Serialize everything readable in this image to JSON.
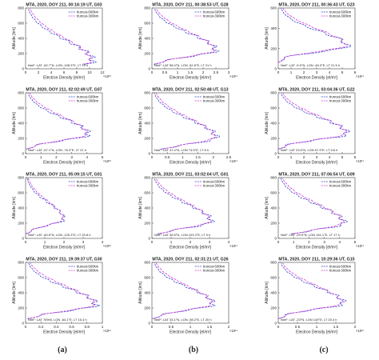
{
  "figure": {
    "column_labels": [
      "(a)",
      "(b)",
      "(c)"
    ],
    "series_names": [
      "truncat-600km",
      "truncat-300km"
    ],
    "colors": {
      "series_600": "#3344cc",
      "series_300": "#d63ad6",
      "axis": "#444444",
      "text": "#222222"
    },
    "ylabel": "Altitude [km]",
    "xlabel": "Electron Density [el/m³]"
  },
  "chart_data": [
    {
      "type": "line",
      "title": "MTA, 2020, DOY 211, 00:16:19 UT, G03",
      "xlabel": "Electron Density [el/m³]",
      "ylabel": "Altitude [km]",
      "xlim": [
        0,
        12
      ],
      "ylim": [
        0,
        800
      ],
      "xticks": [
        "0",
        "2",
        "4",
        "6",
        "8",
        "10",
        "12"
      ],
      "yticks": [
        "0",
        "200",
        "400",
        "600",
        "800"
      ],
      "exponent": "×10¹⁰",
      "annotation": "NmF: LAT -82.7°N, LON -108.3°E, LT 19 h",
      "peak": {
        "x": 10.5,
        "y": 100
      },
      "legend": "right",
      "series": [
        {
          "name": "truncat-600km"
        },
        {
          "name": "truncat-300km"
        }
      ]
    },
    {
      "type": "line",
      "title": "MTA, 2020, DOY 211, 00:38:53 UT, G28",
      "xlabel": "Electron Density [el/m³]",
      "ylabel": "Altitude [km]",
      "xlim": [
        0,
        3
      ],
      "ylim": [
        0,
        800
      ],
      "xticks": [
        "0",
        "0.5",
        "1",
        "1.5",
        "2",
        "2.5",
        "3"
      ],
      "yticks": [
        "0",
        "200",
        "400",
        "600",
        "800"
      ],
      "exponent": "×10¹¹",
      "annotation": "NmF: LAT 58.4°N, LON -52.6°E, LT 21 h",
      "peak": {
        "x": 2.5,
        "y": 240
      },
      "legend": "right",
      "series": [
        {
          "name": "truncat-600km"
        },
        {
          "name": "truncat-300km"
        }
      ]
    },
    {
      "type": "line",
      "title": "MTA, 2020, DOY 211, 00:36:43 UT, G23",
      "xlabel": "Electron Density [el/m³]",
      "ylabel": "Altitude [km]",
      "xlim": [
        0,
        6
      ],
      "ylim": [
        0,
        600
      ],
      "xticks": [
        "0",
        "1",
        "2",
        "3",
        "4",
        "5",
        "6"
      ],
      "yticks": [
        "0",
        "200",
        "400",
        "600"
      ],
      "exponent": "×10¹¹",
      "annotation": "NmF: LAT -9.5°N, LON -46.3°E, LT 21.5 h",
      "peak": {
        "x": 5.4,
        "y": 220
      },
      "legend": "right",
      "series": [
        {
          "name": "truncat-600km"
        },
        {
          "name": "truncat-300km"
        }
      ]
    },
    {
      "type": "line",
      "title": "MTA, 2020, DOY 211, 02:02:49 UT, G07",
      "xlabel": "Electron Density [el/m³]",
      "ylabel": "Altitude [km]",
      "xlim": [
        0,
        5
      ],
      "ylim": [
        0,
        800
      ],
      "xticks": [
        "0",
        "1",
        "2",
        "3",
        "4",
        "5"
      ],
      "yticks": [
        "0",
        "200",
        "400",
        "600",
        "800"
      ],
      "exponent": "×10¹⁰",
      "annotation": "NmF: LAT -67.1°N, LON -76.3°E, LT 21 h",
      "peak": {
        "x": 4.1,
        "y": 250
      },
      "legend": "right",
      "series": [
        {
          "name": "truncat-600km"
        },
        {
          "name": "truncat-300km"
        }
      ]
    },
    {
      "type": "line",
      "title": "MTA, 2020, DOY 211, 02:50:48 UT, G13",
      "xlabel": "Electron Density [el/m³]",
      "ylabel": "Altitude [km]",
      "xlim": [
        0,
        2.5
      ],
      "ylim": [
        0,
        800
      ],
      "xticks": [
        "0",
        "0.5",
        "1",
        "1.5",
        "2",
        "2.5"
      ],
      "yticks": [
        "0",
        "200",
        "400",
        "600",
        "800"
      ],
      "exponent": "×10¹¹",
      "annotation": "NmF: LAT 47.4°N, LON 74.5°E, LT 8 h",
      "peak": {
        "x": 2.1,
        "y": 210
      },
      "legend": "right",
      "series": [
        {
          "name": "truncat-600km"
        },
        {
          "name": "truncat-300km"
        }
      ]
    },
    {
      "type": "line",
      "title": "MTA, 2020, DOY 211, 03:04:36 UT, G22",
      "xlabel": "Electron Density [el/m³]",
      "ylabel": "Altitude [km]",
      "xlim": [
        0,
        6
      ],
      "ylim": [
        0,
        800
      ],
      "xticks": [
        "0",
        "1",
        "2",
        "3",
        "4",
        "5",
        "6"
      ],
      "yticks": [
        "0",
        "200",
        "400",
        "600",
        "800"
      ],
      "exponent": "×10¹¹",
      "annotation": "NmF: LAT 23.6°N, LON 97.9°E, LT 9.6 h",
      "peak": {
        "x": 5.4,
        "y": 260
      },
      "legend": "right",
      "series": [
        {
          "name": "truncat-600km"
        },
        {
          "name": "truncat-300km"
        }
      ]
    },
    {
      "type": "line",
      "title": "MTA, 2020, DOY 211, 05:09:15 UT, G01",
      "xlabel": "Electron Density [el/m³]",
      "ylabel": "Altitude [km]",
      "xlim": [
        0,
        4
      ],
      "ylim": [
        0,
        800
      ],
      "xticks": [
        "0",
        "1",
        "2",
        "3",
        "4"
      ],
      "yticks": [
        "0",
        "200",
        "400",
        "600",
        "800"
      ],
      "exponent": "×10¹⁰",
      "annotation": "NmF: LAT -60.6°N, LON -125.3°E, LT 20.8 h",
      "peak": {
        "x": 2.0,
        "y": 250
      },
      "legend": "right",
      "series": [
        {
          "name": "truncat-600km"
        },
        {
          "name": "truncat-300km"
        }
      ]
    },
    {
      "type": "line",
      "title": "MTA, 2020, DOY 211, 03:02:04 UT, G01",
      "xlabel": "Electron Density [el/m³]",
      "ylabel": "Altitude [km]",
      "xlim": [
        0,
        4
      ],
      "ylim": [
        0,
        800
      ],
      "xticks": [
        "0",
        "1",
        "2",
        "3",
        "4"
      ],
      "yticks": [
        "0",
        "200",
        "400",
        "600",
        "800"
      ],
      "exponent": "×10¹¹",
      "annotation": "NmF: LAT 30.5°N, LON 103.2°E, LT 9 h",
      "peak": {
        "x": 3.1,
        "y": 220
      },
      "legend": "right",
      "series": [
        {
          "name": "truncat-600km"
        },
        {
          "name": "truncat-300km"
        }
      ]
    },
    {
      "type": "line",
      "title": "MTA, 2020, DOY 211, 07:06:54 UT, G09",
      "xlabel": "Electron Density [el/m³]",
      "ylabel": "Altitude [km]",
      "xlim": [
        0,
        5
      ],
      "ylim": [
        0,
        800
      ],
      "xticks": [
        "0",
        "1",
        "2",
        "3",
        "4",
        "5"
      ],
      "yticks": [
        "0",
        "200",
        "400",
        "600",
        "800"
      ],
      "exponent": "×10¹¹",
      "annotation": "NmF: LAT -29.9°N, LON 151.1°E, LT 17 h",
      "peak": {
        "x": 4.3,
        "y": 200
      },
      "legend": "right",
      "series": [
        {
          "name": "truncat-600km"
        },
        {
          "name": "truncat-300km"
        }
      ]
    },
    {
      "type": "line",
      "title": "MTA, 2020, DOY 211, 19:39:37 UT, G30",
      "xlabel": "Electron Density [el/m³]",
      "ylabel": "Altitude [km]",
      "xlim": [
        0,
        1
      ],
      "ylim": [
        0,
        800
      ],
      "xticks": [
        "0",
        "0.2",
        "0.4",
        "0.6",
        "0.8",
        "1"
      ],
      "yticks": [
        "0",
        "200",
        "400",
        "600",
        "800"
      ],
      "exponent": "×10¹¹",
      "annotation": "NmF: LAT 76%N, LON -64.1°E, LT 15.4 h",
      "peak": {
        "x": 0.92,
        "y": 240
      },
      "legend": "right",
      "series": [
        {
          "name": "truncat-600km"
        },
        {
          "name": "truncat-300km"
        }
      ]
    },
    {
      "type": "line",
      "title": "MTA, 2020, DOY 211, 02:31:21 UT, G26",
      "xlabel": "Electron Density [el/m³]",
      "ylabel": "Altitude [km]",
      "xlim": [
        0,
        2
      ],
      "ylim": [
        0,
        800
      ],
      "xticks": [
        "0",
        "0.5",
        "1",
        "1.5",
        "2"
      ],
      "yticks": [
        "0",
        "200",
        "400",
        "600",
        "800"
      ],
      "exponent": "×10¹¹",
      "annotation": "NmF: LAT 33.1°N, LON -98.2°E, LT 20 h",
      "peak": {
        "x": 1.6,
        "y": 250
      },
      "legend": "right",
      "series": [
        {
          "name": "truncat-600km"
        },
        {
          "name": "truncat-300km"
        }
      ]
    },
    {
      "type": "line",
      "title": "MTA, 2020, DOY 211, 10:29:36 UT, G15",
      "xlabel": "Electron Density [el/m³]",
      "ylabel": "Altitude [km]",
      "xlim": [
        0,
        2
      ],
      "ylim": [
        0,
        800
      ],
      "xticks": [
        "0",
        "0.5",
        "1",
        "1.5",
        "2"
      ],
      "yticks": [
        "0",
        "200",
        "400",
        "600",
        "800"
      ],
      "exponent": "×10¹²",
      "annotation": "NmF: LAT -23°N, LON 149°E, LT 20.4 h",
      "peak": {
        "x": 1.7,
        "y": 260
      },
      "legend": "right",
      "series": [
        {
          "name": "truncat-600km"
        },
        {
          "name": "truncat-300km"
        }
      ]
    }
  ]
}
